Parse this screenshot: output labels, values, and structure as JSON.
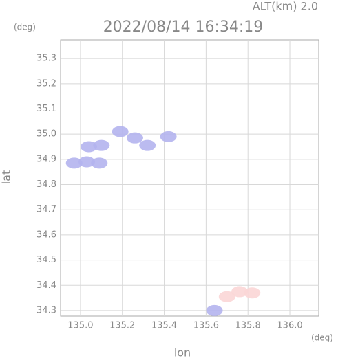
{
  "chart_data": {
    "type": "scatter",
    "title": "2022/08/14 16:34:19",
    "subtitle": "ALT(km) 2.0",
    "x_label": "lon",
    "y_label": "lat",
    "x_unit": "(deg)",
    "y_unit": "(deg)",
    "xlim": [
      134.905,
      136.138
    ],
    "ylim": [
      34.278,
      35.374
    ],
    "xticks": [
      {
        "value": 135,
        "label": "135.0"
      },
      135.2,
      135.4,
      135.6,
      135.8,
      {
        "value": 136,
        "label": "136.0"
      }
    ],
    "yticks": [
      34.3,
      34.4,
      34.5,
      34.6,
      34.7,
      34.8,
      34.9,
      {
        "value": 35,
        "label": "35.0"
      },
      35.1,
      35.2,
      35.3
    ],
    "grid": true,
    "series": [
      {
        "color": "#b4b4ee",
        "x": [
          134.97,
          135.03,
          135.09,
          135.04,
          135.1,
          135.19,
          135.26,
          135.32,
          135.42,
          135.64
        ],
        "values": [
          34.885,
          34.89,
          34.885,
          34.95,
          34.955,
          35.01,
          34.985,
          34.955,
          34.99,
          34.3
        ]
      },
      {
        "color": "#fbd6d6",
        "x": [
          135.7,
          135.76,
          135.82
        ],
        "values": [
          34.355,
          34.375,
          34.37
        ]
      }
    ]
  }
}
